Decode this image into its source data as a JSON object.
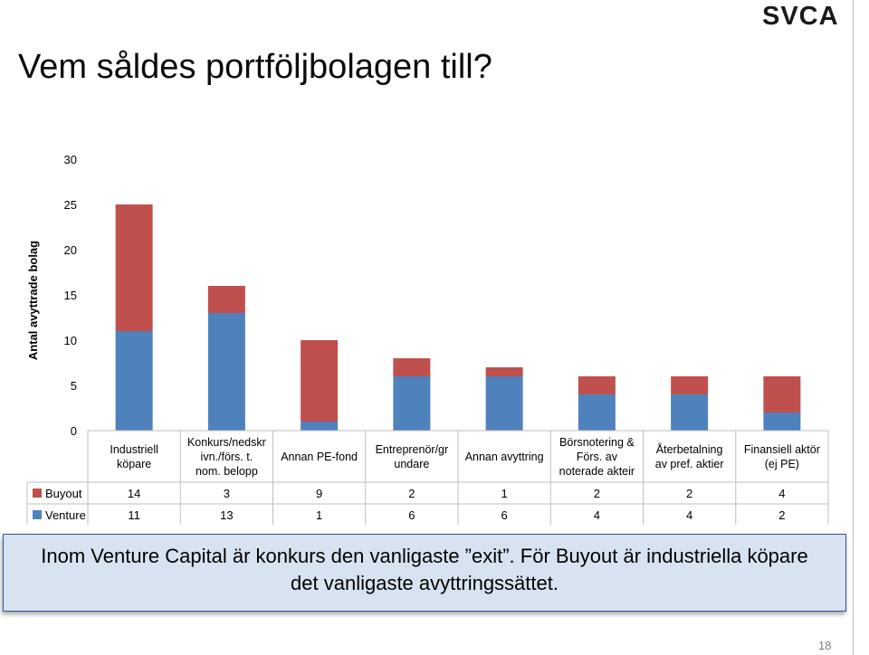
{
  "page": {
    "title": "Vem såldes portföljbolagen till?",
    "logo_text": "SVCA",
    "callout_line1": "Inom Venture Capital är konkurs den vanligaste ”exit”. För Buyout är industriella köpare",
    "callout_line2": "det vanligaste avyttringssättet.",
    "page_number": "18"
  },
  "chart_data": {
    "type": "bar",
    "stacked": true,
    "ylabel": "Antal avyttrade bolag",
    "ylim": [
      0,
      30
    ],
    "yticks": [
      "0",
      "5",
      "10",
      "15",
      "20",
      "25",
      "30"
    ],
    "categories": [
      [
        "Industriell",
        "köpare"
      ],
      [
        "Konkurs/nedskr",
        "ivn./förs. t.",
        "nom. belopp"
      ],
      [
        "Annan PE-fond"
      ],
      [
        "Entreprenör/gr",
        "undare"
      ],
      [
        "Annan avyttring"
      ],
      [
        "Börsnotering &",
        "Förs. av",
        "noterade akteir"
      ],
      [
        "Återbetalning",
        "av pref. aktier"
      ],
      [
        "Finansiell aktör",
        "(ej PE)"
      ]
    ],
    "series": [
      {
        "name": "Venture",
        "values": [
          11,
          13,
          1,
          6,
          6,
          4,
          4,
          2
        ],
        "color": "#4f81bd"
      },
      {
        "name": "Buyout",
        "values": [
          14,
          3,
          9,
          2,
          1,
          2,
          2,
          4
        ],
        "color": "#c0504d"
      }
    ],
    "table_rows": [
      {
        "name": "Buyout",
        "color": "#c0504d",
        "values": [
          "14",
          "3",
          "9",
          "2",
          "1",
          "2",
          "2",
          "4"
        ]
      },
      {
        "name": "Venture",
        "color": "#4f81bd",
        "values": [
          "11",
          "13",
          "1",
          "6",
          "6",
          "4",
          "4",
          "2"
        ]
      }
    ],
    "grid": false,
    "legend": "data table"
  }
}
